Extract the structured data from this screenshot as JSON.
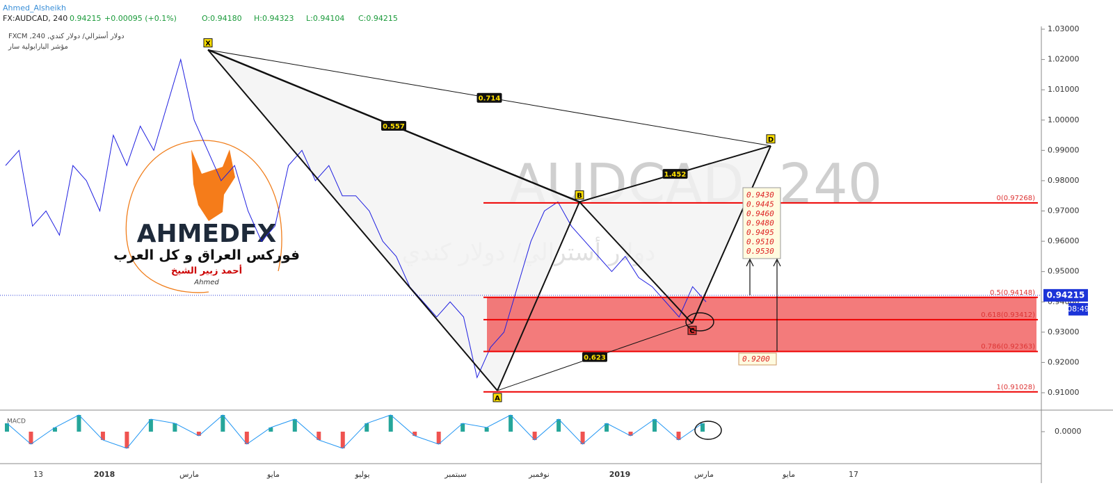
{
  "header": {
    "author": "Ahmed_Alsheikh",
    "symbol": "FX:AUDCAD, 240",
    "last": "0.94215",
    "change": "+0.00095 (+0.1%)",
    "ohlc": [
      "O:0.94180",
      "H:0.94323",
      "L:0.94104",
      "C:0.94215"
    ]
  },
  "legend": [
    "FXCM ,240 ,دولار أسترالي/ دولار كندي",
    "مؤشر البارابولية سار"
  ],
  "watermark": {
    "title": "AUDCAD, 240",
    "subtitle": "دولار أسترالي/ دولار كندي"
  },
  "logo": {
    "brand": "AHMEDFX",
    "tagline": "فوركس العراق و كل العرب",
    "name": "أحمد زبير الشيخ",
    "signature": "Ahmed"
  },
  "chart_data": {
    "type": "line",
    "ylim": [
      0.91,
      1.03
    ],
    "yticks": [
      {
        "value": 1.03,
        "label": "1.03000"
      },
      {
        "value": 1.02,
        "label": "1.02000"
      },
      {
        "value": 1.01,
        "label": "1.01000"
      },
      {
        "value": 1.0,
        "label": "1.00000"
      },
      {
        "value": 0.99,
        "label": "0.99000"
      },
      {
        "value": 0.98,
        "label": "0.98000"
      },
      {
        "value": 0.97,
        "label": "0.97000"
      },
      {
        "value": 0.96,
        "label": "0.96000"
      },
      {
        "value": 0.95,
        "label": "0.95000"
      },
      {
        "value": 0.94,
        "label": "0.94000"
      },
      {
        "value": 0.93,
        "label": "0.93000"
      },
      {
        "value": 0.92,
        "label": "0.92000"
      },
      {
        "value": 0.91,
        "label": "0.91000"
      }
    ],
    "x_labels": [
      "13",
      "2018",
      "مارس",
      "مايو",
      "يوليو",
      "سبتمبر",
      "نوفمبر",
      "2019",
      "مارس",
      "مايو",
      "17"
    ],
    "series": [
      {
        "name": "AUDCAD",
        "color": "#1f1fe0",
        "values": [
          0.985,
          0.99,
          0.965,
          0.97,
          0.962,
          0.985,
          0.98,
          0.97,
          0.995,
          0.985,
          0.998,
          0.99,
          1.005,
          1.02,
          1.0,
          0.99,
          0.98,
          0.985,
          0.97,
          0.96,
          0.965,
          0.985,
          0.99,
          0.98,
          0.985,
          0.975,
          0.975,
          0.97,
          0.96,
          0.955,
          0.945,
          0.94,
          0.935,
          0.94,
          0.935,
          0.915,
          0.925,
          0.93,
          0.945,
          0.96,
          0.97,
          0.973,
          0.965,
          0.96,
          0.955,
          0.95,
          0.955,
          0.948,
          0.945,
          0.94,
          0.935,
          0.945,
          0.94
        ]
      }
    ],
    "pattern": [
      {
        "label": "X",
        "price": 1.0232
      },
      {
        "label": "A",
        "price": 0.9107
      },
      {
        "label": "B",
        "price": 0.973
      },
      {
        "label": "C",
        "price": 0.9329
      },
      {
        "label": "D",
        "price": 0.9915
      }
    ],
    "ratios": [
      {
        "label": "0.557",
        "from": 0,
        "to": 2
      },
      {
        "label": "0.714",
        "from": 0,
        "to": 4
      },
      {
        "label": "1.452",
        "from": 2,
        "to": 4
      },
      {
        "label": "0.623",
        "from": 1,
        "to": 3
      }
    ],
    "fib_levels": [
      {
        "value": 0.97268,
        "label": "0(0.97268)"
      },
      {
        "value": 0.94148,
        "label": "0.5(0.94148)"
      },
      {
        "value": 0.93412,
        "label": "0.618(0.93412)"
      },
      {
        "value": 0.92363,
        "label": "0.786(0.92363)"
      },
      {
        "value": 0.91028,
        "label": "1(0.91028)"
      }
    ],
    "targets": [
      "0.9430",
      "0.9445",
      "0.9460",
      "0.9480",
      "0.9495",
      "0.9510",
      "0.9530"
    ],
    "stop": "0.9200",
    "price_tag": {
      "value": 0.94215,
      "label": "0.94215"
    },
    "countdown": "08:49",
    "macd": {
      "label": "MACD",
      "zero": {
        "value": 0,
        "label": "0.0000"
      },
      "lim": [
        -0.005,
        0.005
      ],
      "values": [
        0.002,
        -0.003,
        0.001,
        0.004,
        -0.002,
        -0.004,
        0.003,
        0.002,
        -0.001,
        0.004,
        -0.003,
        0.001,
        0.003,
        -0.002,
        -0.004,
        0.002,
        0.004,
        -0.001,
        -0.003,
        0.002,
        0.001,
        0.004,
        -0.002,
        0.003,
        -0.003,
        0.002,
        -0.001,
        0.003,
        -0.002,
        0.002
      ]
    }
  }
}
